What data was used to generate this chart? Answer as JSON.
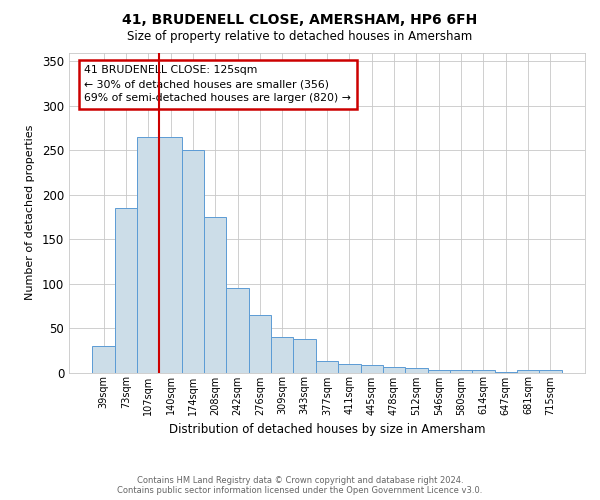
{
  "title": "41, BRUDENELL CLOSE, AMERSHAM, HP6 6FH",
  "subtitle": "Size of property relative to detached houses in Amersham",
  "xlabel": "Distribution of detached houses by size in Amersham",
  "ylabel": "Number of detached properties",
  "footer_line1": "Contains HM Land Registry data © Crown copyright and database right 2024.",
  "footer_line2": "Contains public sector information licensed under the Open Government Licence v3.0.",
  "bin_labels": [
    "39sqm",
    "73sqm",
    "107sqm",
    "140sqm",
    "174sqm",
    "208sqm",
    "242sqm",
    "276sqm",
    "309sqm",
    "343sqm",
    "377sqm",
    "411sqm",
    "445sqm",
    "478sqm",
    "512sqm",
    "546sqm",
    "580sqm",
    "614sqm",
    "647sqm",
    "681sqm",
    "715sqm"
  ],
  "bar_values": [
    30,
    185,
    265,
    265,
    250,
    175,
    95,
    65,
    40,
    38,
    13,
    10,
    8,
    6,
    5,
    3,
    3,
    3,
    1,
    3,
    3
  ],
  "bar_color": "#ccdde8",
  "bar_edge_color": "#5b9bd5",
  "vline_x": 2.5,
  "vline_color": "#cc0000",
  "annotation_text": "41 BRUDENELL CLOSE: 125sqm\n← 30% of detached houses are smaller (356)\n69% of semi-detached houses are larger (820) →",
  "annotation_box_color": "#ffffff",
  "annotation_box_edge": "#cc0000",
  "ylim": [
    0,
    360
  ],
  "yticks": [
    0,
    50,
    100,
    150,
    200,
    250,
    300,
    350
  ],
  "background_color": "#ffffff",
  "grid_color": "#c8c8c8"
}
